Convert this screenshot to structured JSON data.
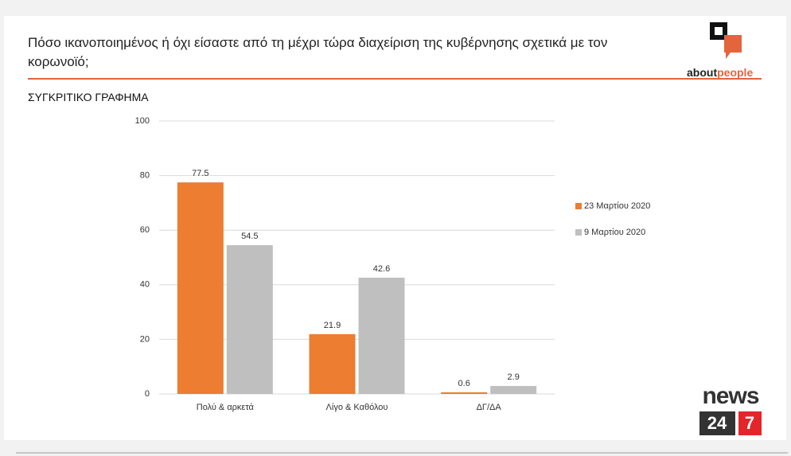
{
  "chart_data": {
    "type": "bar",
    "title": "Πόσο ικανοποιημένος ή όχι είσαστε από τη μέχρι τώρα διαχείριση της κυβέρνησης σχετικά με τον κορωνοϊό;",
    "subtitle": "ΣΥΓΚΡΙΤΙΚΟ ΓΡΑΦΗΜΑ",
    "categories": [
      "Πολύ & αρκετά",
      "Λίγο & Καθόλου",
      "ΔΓ/ΔΑ"
    ],
    "series": [
      {
        "name": "23 Μαρτίου 2020",
        "color": "#ed7d31",
        "values": [
          77.5,
          21.9,
          0.6
        ]
      },
      {
        "name": "9 Μαρτίου 2020",
        "color": "#bfbfbf",
        "values": [
          54.5,
          42.6,
          2.9
        ]
      }
    ],
    "ylim": [
      0,
      100
    ],
    "yticks": [
      0,
      20,
      40,
      60,
      80,
      100
    ],
    "grid": true,
    "legend": "right"
  },
  "branding": {
    "about": "about",
    "people": "people",
    "news": "news",
    "n24": "24",
    "n7": "7"
  }
}
